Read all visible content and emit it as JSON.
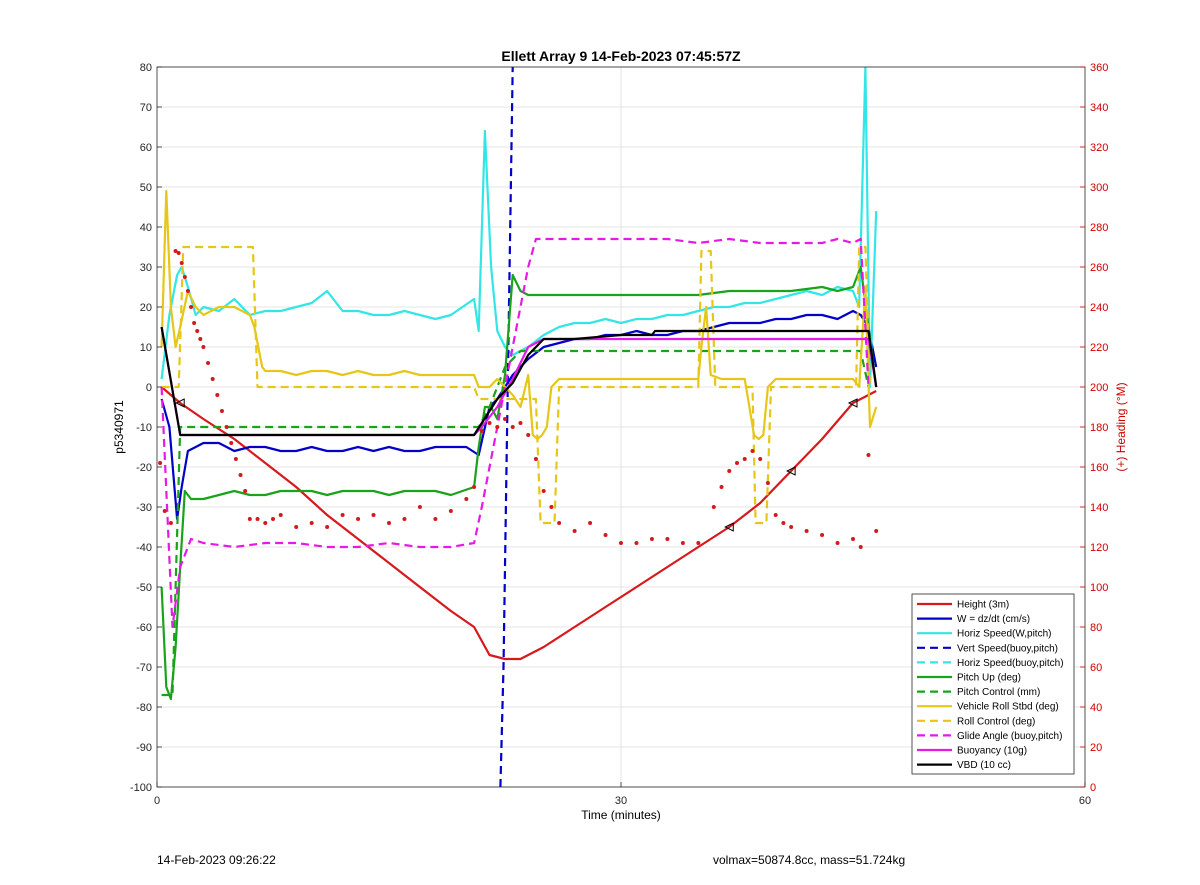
{
  "chart_data": {
    "type": "line",
    "title": "Ellett Array 9 14-Feb-2023 07:45:57Z",
    "xlabel": "Time (minutes)",
    "ylabel": "p5340971",
    "y2label": "(+) Heading (°M)",
    "xlim": [
      0,
      60
    ],
    "ylim": [
      -100,
      80
    ],
    "y2lim": [
      0,
      360
    ],
    "xticks": [
      0,
      30,
      60
    ],
    "yticks": [
      -100,
      -90,
      -80,
      -70,
      -60,
      -50,
      -40,
      -30,
      -20,
      -10,
      0,
      10,
      20,
      30,
      40,
      50,
      60,
      70,
      80
    ],
    "y2ticks": [
      0,
      20,
      40,
      60,
      80,
      100,
      120,
      140,
      160,
      180,
      200,
      220,
      240,
      260,
      280,
      300,
      320,
      340,
      360
    ],
    "grid": true,
    "legend_position": "bottom-right",
    "colors": {
      "red": "#d7191c",
      "blue": "#0000c8",
      "cyan": "#33e6e6",
      "green": "#1aa31a",
      "yellow": "#e6c619",
      "magenta": "#e619e6",
      "black": "#000000",
      "axis2": "#cc0000"
    },
    "series": [
      {
        "name": "Height (3m)",
        "style": "solid",
        "color": "#d7191c",
        "x": [
          0.3,
          1.5,
          3,
          5,
          7,
          9,
          11,
          13,
          15,
          17,
          19,
          20.5,
          21.5,
          22.5,
          23.5,
          25,
          27,
          29,
          31,
          33,
          35,
          37,
          39,
          41,
          43,
          45,
          46.5
        ],
        "y": [
          0,
          -4,
          -8,
          -13,
          -19,
          -25,
          -32,
          -38,
          -44,
          -50,
          -56,
          -60,
          -67,
          -68,
          -68,
          -65,
          -60,
          -55,
          -50,
          -45,
          -40,
          -35,
          -29,
          -21,
          -13,
          -4,
          -1
        ]
      },
      {
        "name": "W = dz/dt (cm/s)",
        "style": "solid",
        "color": "#0000c8",
        "x": [
          0.3,
          0.8,
          1.3,
          1.6,
          2,
          2.5,
          3,
          4,
          5,
          6,
          7,
          8,
          9,
          10,
          11,
          12,
          13,
          14,
          15,
          16,
          17,
          18,
          19,
          20,
          20.8,
          21.5,
          22,
          22.5,
          23,
          24,
          25,
          26,
          27,
          28,
          29,
          30,
          31,
          32,
          33,
          34,
          35,
          36,
          37,
          38,
          39,
          40,
          41,
          42,
          43,
          44,
          45,
          45.5,
          46,
          46.5
        ],
        "y": [
          -3,
          -10,
          -33,
          -25,
          -16,
          -15,
          -14,
          -14,
          -16,
          -15,
          -15,
          -16,
          -16,
          -15,
          -16,
          -16,
          -15,
          -16,
          -15,
          -16,
          -16,
          -15,
          -15,
          -15,
          -17,
          -5,
          -3,
          0,
          3,
          7,
          10,
          11,
          12,
          12,
          13,
          13,
          14,
          13,
          13,
          14,
          14,
          15,
          16,
          16,
          16,
          17,
          17,
          18,
          18,
          17,
          19,
          18,
          15,
          5
        ]
      },
      {
        "name": "Horiz Speed(W,pitch)",
        "style": "solid",
        "color": "#33e6e6",
        "x": [
          0.3,
          0.8,
          1.3,
          1.6,
          2,
          2.5,
          3,
          4,
          5,
          6,
          7,
          8,
          9,
          10,
          11,
          12,
          13,
          14,
          15,
          16,
          17,
          18,
          19,
          20.5,
          20.8,
          21.2,
          21.6,
          22,
          22.5,
          23,
          24,
          25,
          26,
          27,
          28,
          29,
          30,
          31,
          32,
          33,
          34,
          35,
          36,
          37,
          38,
          39,
          40,
          41,
          42,
          43,
          44,
          45,
          45.4,
          45.8,
          46.1,
          46.5
        ],
        "y": [
          2,
          18,
          28,
          30,
          25,
          18,
          20,
          19,
          22,
          18,
          19,
          19,
          20,
          21,
          24,
          19,
          19,
          18,
          18,
          19,
          18,
          17,
          18,
          22,
          14,
          64,
          30,
          14,
          10,
          8,
          10,
          13,
          15,
          16,
          16,
          17,
          16,
          17,
          17,
          18,
          18,
          19,
          20,
          20,
          21,
          21,
          22,
          23,
          24,
          23,
          25,
          24,
          20,
          80,
          0,
          44
        ]
      },
      {
        "name": "Vert Speed(buoy,pitch)",
        "style": "dashed",
        "color": "#0000c8",
        "x": [
          22.2,
          22.4,
          22.6,
          22.8,
          23
        ],
        "y": [
          -100,
          -70,
          -20,
          30,
          80
        ]
      },
      {
        "name": "Horiz Speed(buoy,pitch)",
        "style": "dashed",
        "color": "#33e6e6",
        "x": [],
        "y": []
      },
      {
        "name": "Pitch Up (deg)",
        "style": "solid",
        "color": "#1aa31a",
        "x": [
          0.3,
          0.6,
          0.9,
          1.2,
          1.5,
          1.8,
          2.2,
          3,
          4,
          5,
          6,
          7,
          8,
          9,
          10,
          11,
          12,
          13,
          14,
          15,
          16,
          17,
          18,
          19,
          20.5,
          20.8,
          21.2,
          21.6,
          22,
          22.5,
          23,
          23.5,
          24,
          25,
          27,
          29,
          31,
          33,
          35,
          37,
          39,
          41,
          43,
          44,
          45,
          45.5,
          46,
          46.5
        ],
        "y": [
          -50,
          -75,
          -78,
          -65,
          -45,
          -26,
          -28,
          -28,
          -27,
          -26,
          -27,
          -27,
          -26,
          -26,
          -26,
          -27,
          -26,
          -26,
          -26,
          -27,
          -26,
          -26,
          -26,
          -27,
          -25,
          -15,
          -5,
          -5,
          -8,
          3,
          28,
          24,
          23,
          23,
          23,
          23,
          23,
          23,
          23,
          24,
          24,
          24,
          25,
          24,
          25,
          30,
          15,
          0
        ]
      },
      {
        "name": "Pitch Control (mm)",
        "style": "dashed",
        "color": "#1aa31a",
        "x": [
          0.3,
          1.0,
          1.5,
          1.8,
          20.5,
          20.8,
          21.5,
          22.5,
          23.5,
          24.5,
          45.5,
          46
        ],
        "y": [
          -77,
          -77,
          -10,
          -10,
          -10,
          -10,
          -5,
          5,
          9,
          9,
          9,
          0
        ]
      },
      {
        "name": "Vehicle Roll Stbd (deg)",
        "style": "solid",
        "color": "#e6c619",
        "x": [
          0.3,
          0.6,
          0.9,
          1.2,
          1.5,
          2,
          2.5,
          3,
          4,
          5,
          6,
          6.3,
          6.8,
          7,
          8,
          9,
          10,
          11,
          12,
          13,
          14,
          15,
          16,
          17,
          18,
          19,
          20.5,
          20.8,
          21.5,
          22,
          22.5,
          23,
          23.5,
          24,
          24.3,
          24.6,
          24.9,
          25.2,
          25.5,
          26,
          27,
          29,
          31,
          33,
          35,
          35.2,
          35.5,
          35.8,
          36.5,
          37,
          38,
          38.3,
          38.6,
          38.9,
          39.2,
          39.5,
          40,
          42,
          44,
          45,
          45.4,
          45.8,
          46.1,
          46.5
        ],
        "y": [
          10,
          49,
          20,
          10,
          15,
          24,
          20,
          18,
          20,
          20,
          18,
          15,
          5,
          4,
          4,
          3,
          4,
          4,
          3,
          4,
          3,
          3,
          4,
          3,
          3,
          3,
          3,
          0,
          0,
          2,
          0,
          -2,
          -5,
          3,
          -12,
          -13,
          -12,
          -10,
          0,
          2,
          2,
          2,
          2,
          2,
          2,
          10,
          20,
          3,
          2,
          2,
          2,
          -5,
          -12,
          -13,
          -12,
          0,
          2,
          2,
          2,
          2,
          0,
          25,
          -10,
          -5
        ]
      },
      {
        "name": "Roll Control (deg)",
        "style": "dashed",
        "color": "#e6c619",
        "x": [
          0.3,
          1.4,
          1.7,
          6.2,
          6.5,
          20.5,
          20.8,
          24.5,
          24.8,
          25.7,
          26,
          35,
          35.2,
          35.8,
          36.1,
          38.5,
          38.7,
          39.4,
          39.7,
          45.2,
          45.4,
          45.8,
          46.1
        ],
        "y": [
          0,
          0,
          35,
          35,
          0,
          0,
          -3,
          -3,
          -34,
          -34,
          0,
          0,
          34,
          34,
          0,
          0,
          -34,
          -34,
          0,
          0,
          35,
          35,
          0
        ]
      },
      {
        "name": "Glide Angle (buoy,pitch)",
        "style": "dashed",
        "color": "#e619e6",
        "x": [
          0.3,
          1.0,
          1.5,
          2.2,
          3,
          5,
          7,
          9,
          11,
          13,
          15,
          17,
          19,
          20.5,
          21,
          22,
          23,
          24,
          24.5,
          25,
          27,
          29,
          31,
          33,
          35,
          37,
          39,
          41,
          43,
          44,
          45,
          45.5,
          46
        ],
        "y": [
          0,
          -60,
          -45,
          -38,
          -39,
          -40,
          -39,
          -39,
          -40,
          -40,
          -39,
          -40,
          -40,
          -39,
          -30,
          -10,
          10,
          30,
          37,
          37,
          37,
          37,
          37,
          37,
          36,
          37,
          36,
          36,
          36,
          37,
          36,
          37,
          0
        ]
      },
      {
        "name": "Buoyancy (10g)",
        "style": "solid",
        "color": "#e619e6",
        "x": [
          0.3,
          1.5,
          2,
          20.5,
          21,
          22,
          23,
          24,
          25,
          46,
          46.5
        ],
        "y": [
          15,
          -12,
          -12,
          -12,
          -10,
          -5,
          2,
          10,
          12,
          12,
          0
        ]
      },
      {
        "name": "VBD (10 cc)",
        "style": "solid",
        "color": "#000000",
        "x": [
          0.3,
          1.5,
          2,
          20.5,
          21,
          22,
          23,
          24,
          25,
          27,
          30,
          32,
          32.2,
          35,
          40,
          45,
          46,
          46.5
        ],
        "y": [
          15,
          -12,
          -12,
          -12,
          -9,
          -3,
          1,
          8,
          12,
          12,
          13,
          13,
          14,
          14,
          14,
          14,
          14,
          0
        ]
      },
      {
        "name": "",
        "style": "dotted",
        "color": "#d7191c",
        "axis": "y2",
        "x": [
          0.2,
          0.5,
          0.9,
          1.2,
          1.4,
          1.6,
          1.8,
          2.0,
          2.2,
          2.4,
          2.6,
          2.8,
          3.0,
          3.3,
          3.6,
          3.9,
          4.2,
          4.5,
          4.8,
          5.1,
          5.4,
          5.7,
          6,
          6.5,
          7,
          7.5,
          8,
          9,
          10,
          11,
          12,
          13,
          14,
          15,
          16,
          17,
          18,
          19,
          20,
          20.5,
          21,
          21.5,
          22,
          22.5,
          23,
          23.5,
          24,
          24.5,
          25,
          25.5,
          26,
          27,
          28,
          29,
          30,
          31,
          32,
          33,
          34,
          35,
          36,
          36.5,
          37,
          37.5,
          38,
          38.5,
          39,
          39.5,
          40,
          40.5,
          41,
          42,
          43,
          44,
          45,
          45.5,
          46,
          46.5
        ],
        "y": [
          162,
          138,
          132,
          268,
          267,
          262,
          255,
          248,
          240,
          232,
          228,
          224,
          220,
          212,
          204,
          196,
          188,
          180,
          172,
          164,
          156,
          148,
          134,
          134,
          132,
          134,
          136,
          130,
          132,
          130,
          136,
          134,
          136,
          132,
          134,
          140,
          134,
          138,
          144,
          150,
          178,
          182,
          180,
          184,
          180,
          182,
          176,
          164,
          148,
          140,
          132,
          128,
          132,
          126,
          122,
          122,
          124,
          124,
          122,
          122,
          140,
          150,
          158,
          162,
          164,
          168,
          164,
          152,
          136,
          132,
          130,
          128,
          126,
          122,
          124,
          120,
          166,
          128
        ]
      }
    ]
  },
  "footer": {
    "timestamp": "14-Feb-2023 09:26:22",
    "volmax": "volmax=50874.8cc, mass=51.724kg"
  }
}
